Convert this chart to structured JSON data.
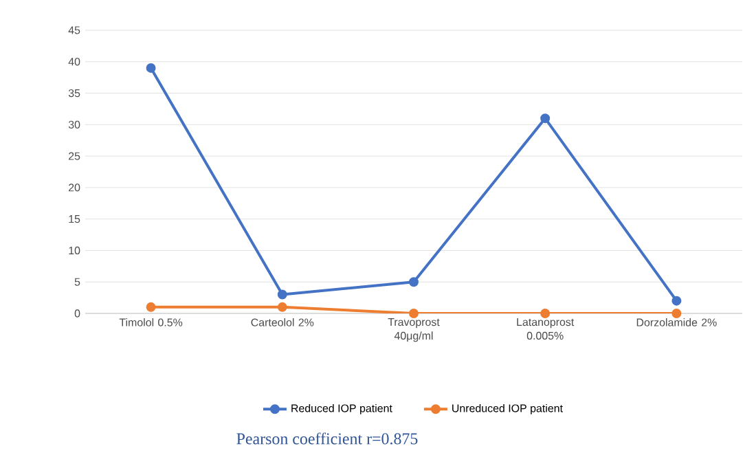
{
  "chart_data": {
    "type": "line",
    "categories": [
      "Timolol 0.5%",
      "Carteolol 2%",
      "Travoprost 40μg/ml",
      "Latanoprost 0.005%",
      "Dorzolamide 2%"
    ],
    "series": [
      {
        "name": "Reduced IOP patient",
        "color": "#4472c4",
        "values": [
          39,
          3,
          5,
          31,
          2
        ]
      },
      {
        "name": "Unreduced IOP patient",
        "color": "#ed7d31",
        "values": [
          1,
          1,
          0,
          0,
          0
        ]
      }
    ],
    "ylim": [
      0,
      45
    ],
    "yticks": [
      0,
      5,
      10,
      15,
      20,
      25,
      30,
      35,
      40,
      45
    ],
    "grid": "y",
    "legend": "bottom",
    "marker": "circle",
    "line_style": "solid",
    "annotations": [
      "Pearson coefficient r=0.875"
    ]
  }
}
